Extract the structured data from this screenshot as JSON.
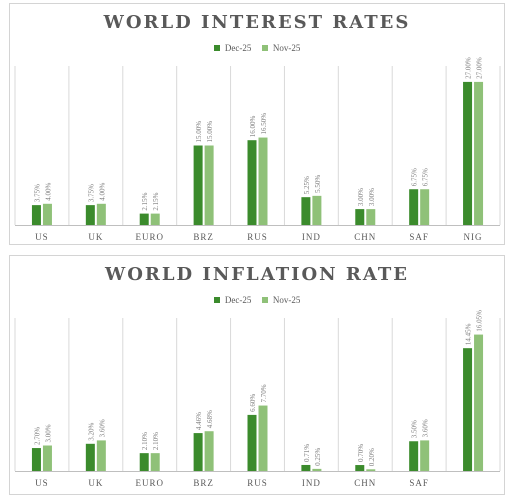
{
  "colors": {
    "dec": "#3b8b2c",
    "nov": "#8fc178",
    "grid": "#d9d9d9",
    "text": "#595959",
    "label": "#7f7f7f"
  },
  "chart_data": [
    {
      "type": "bar",
      "title": "WORLD INTEREST RATES",
      "categories": [
        "US",
        "UK",
        "EURO",
        "BRZ",
        "RUS",
        "IND",
        "CHN",
        "SAF",
        "NIG"
      ],
      "series": [
        {
          "name": "Dec-25",
          "values": [
            3.75,
            3.75,
            2.15,
            15.0,
            16.0,
            5.25,
            3.0,
            6.75,
            27.0
          ],
          "labels": [
            "3.75%",
            "3.75%",
            "2.15%",
            "15.00%",
            "16.00%",
            "5.25%",
            "3.00%",
            "6.75%",
            "27.00%"
          ]
        },
        {
          "name": "Nov-25",
          "values": [
            4.0,
            4.0,
            2.15,
            15.0,
            16.5,
            5.5,
            3.0,
            6.75,
            27.0
          ],
          "labels": [
            "4.00%",
            "4.00%",
            "2.15%",
            "15.00%",
            "16.50%",
            "5.50%",
            "3.00%",
            "6.75%",
            "27.00%"
          ]
        }
      ],
      "ylim": [
        0,
        30
      ],
      "grid": "vertical",
      "legend": "top-center"
    },
    {
      "type": "bar",
      "title": "WORLD INFLATION RATE",
      "categories": [
        "US",
        "UK",
        "EURO",
        "BRZ",
        "RUS",
        "IND",
        "CHN",
        "SAF",
        ""
      ],
      "series": [
        {
          "name": "Dec-25",
          "values": [
            2.7,
            3.2,
            2.1,
            4.46,
            6.6,
            0.71,
            0.7,
            3.5,
            14.45
          ],
          "labels": [
            "2.70%",
            "3.20%",
            "2.10%",
            "4.46%",
            "6.60%",
            "0.71%",
            "0.70%",
            "3.50%",
            "14.45%"
          ]
        },
        {
          "name": "Nov-25",
          "values": [
            3.0,
            3.6,
            2.1,
            4.68,
            7.7,
            0.25,
            0.2,
            3.6,
            16.05
          ],
          "labels": [
            "3.00%",
            "3.60%",
            "2.10%",
            "4.68%",
            "7.70%",
            "0.25%",
            "0.20%",
            "3.60%",
            "16.05%"
          ]
        }
      ],
      "ylim": [
        0,
        18
      ],
      "grid": "vertical",
      "legend": "top-center"
    }
  ]
}
